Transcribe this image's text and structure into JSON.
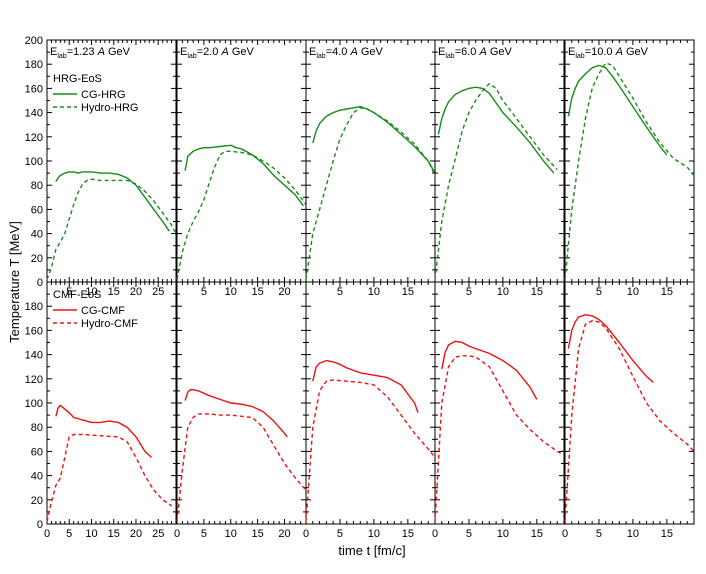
{
  "chart_data": {
    "type": "line",
    "title": "",
    "xlabel": "time t [fm/c]",
    "ylabel": "Temperature T [MeV]",
    "ylim": [
      0,
      200
    ],
    "yticks": [
      0,
      20,
      40,
      60,
      80,
      100,
      120,
      140,
      160,
      180
    ],
    "ytick_top": 200,
    "grid": false,
    "legend_position": "top-left",
    "colors": {
      "hrg": "#1a8a1a",
      "cmf": "#ee1111"
    },
    "rows": [
      {
        "label": "HRG-EoS",
        "legend": [
          "CG-HRG",
          "Hydro-HRG"
        ]
      },
      {
        "label": "CMF-EoS",
        "legend": [
          "CG-CMF",
          "Hydro-CMF"
        ]
      }
    ],
    "columns": [
      {
        "label_prefix": "E",
        "label_sub": "lab",
        "label_value": "=1.23 ",
        "label_italic": "A",
        "label_unit": " GeV",
        "xlim": [
          0,
          29
        ],
        "xticks": [
          5,
          10,
          15,
          20,
          25
        ],
        "xticks_bottom": [
          0,
          5,
          10,
          15,
          20,
          25
        ]
      },
      {
        "label_prefix": "E",
        "label_sub": "lab",
        "label_value": "=2.0 ",
        "label_italic": "A",
        "label_unit": " GeV",
        "xlim": [
          0,
          24
        ],
        "xticks": [
          5,
          10,
          15,
          20
        ],
        "xticks_bottom": [
          0,
          5,
          10,
          15,
          20
        ]
      },
      {
        "label_prefix": "E",
        "label_sub": "lab",
        "label_value": "=4.0 ",
        "label_italic": "A",
        "label_unit": " GeV",
        "xlim": [
          0,
          19
        ],
        "xticks": [
          5,
          10,
          15
        ],
        "xticks_bottom": [
          0,
          5,
          10,
          15
        ]
      },
      {
        "label_prefix": "E",
        "label_sub": "lab",
        "label_value": "=6.0 ",
        "label_italic": "A",
        "label_unit": " GeV",
        "xlim": [
          0,
          19
        ],
        "xticks": [
          5,
          10,
          15
        ],
        "xticks_bottom": [
          0,
          5,
          10,
          15
        ]
      },
      {
        "label_prefix": "E",
        "label_sub": "lab",
        "label_value": "=10.0 ",
        "label_italic": "A",
        "label_unit": " GeV",
        "xlim": [
          0,
          19
        ],
        "xticks": [
          5,
          10,
          15
        ],
        "xticks_bottom": [
          0,
          5,
          10,
          15
        ]
      }
    ],
    "series": [
      {
        "name": "CG-HRG",
        "row": 0,
        "col": 0,
        "style": "solid",
        "x": [
          2,
          2.5,
          3,
          4,
          5,
          6,
          7,
          8,
          10,
          12,
          14,
          16,
          18,
          20,
          22,
          24,
          26,
          27.5
        ],
        "y": [
          83,
          86,
          88,
          90,
          91,
          91,
          90,
          91,
          91,
          90,
          90,
          89,
          86,
          80,
          70,
          60,
          50,
          42
        ]
      },
      {
        "name": "Hydro-HRG",
        "row": 0,
        "col": 0,
        "style": "dashed",
        "x": [
          0,
          1,
          2,
          3,
          4,
          5,
          6,
          7,
          8,
          9,
          10,
          12,
          15,
          18,
          20,
          22,
          24,
          26,
          28,
          29
        ],
        "y": [
          2,
          12,
          27,
          33,
          40,
          52,
          64,
          74,
          81,
          84,
          85,
          84,
          84,
          84,
          81,
          75,
          67,
          57,
          47,
          40
        ]
      },
      {
        "name": "CG-HRG",
        "row": 0,
        "col": 1,
        "style": "solid",
        "x": [
          1.5,
          2,
          3,
          4,
          5,
          6,
          8,
          10,
          11,
          12,
          14,
          16,
          18,
          20,
          22,
          23.5
        ],
        "y": [
          92,
          104,
          108,
          110,
          111,
          111,
          112,
          113,
          111,
          110,
          105,
          98,
          88,
          80,
          72,
          63
        ]
      },
      {
        "name": "Hydro-HRG",
        "row": 0,
        "col": 1,
        "style": "dashed",
        "x": [
          0,
          1,
          2,
          3,
          4,
          5,
          6,
          7,
          8,
          9,
          10,
          12,
          14,
          16,
          18,
          20,
          22,
          24
        ],
        "y": [
          2,
          25,
          40,
          50,
          58,
          68,
          82,
          95,
          105,
          108,
          108,
          107,
          105,
          100,
          94,
          86,
          76,
          64
        ]
      },
      {
        "name": "CG-HRG",
        "row": 0,
        "col": 2,
        "style": "solid",
        "x": [
          1,
          1.5,
          2,
          3,
          4,
          5,
          6,
          7,
          8,
          9,
          10,
          12,
          14,
          16,
          18,
          19
        ],
        "y": [
          115,
          125,
          131,
          137,
          140,
          142,
          143,
          144,
          145,
          143,
          140,
          132,
          122,
          112,
          100,
          90
        ]
      },
      {
        "name": "Hydro-HRG",
        "row": 0,
        "col": 2,
        "style": "dashed",
        "x": [
          0,
          1,
          2,
          3,
          4,
          5,
          6,
          7,
          8,
          9,
          10,
          12,
          14,
          16,
          18,
          19
        ],
        "y": [
          2,
          40,
          60,
          80,
          100,
          118,
          130,
          140,
          144,
          143,
          140,
          133,
          124,
          114,
          100,
          88
        ]
      },
      {
        "name": "CG-HRG",
        "row": 0,
        "col": 3,
        "style": "solid",
        "x": [
          0.5,
          1,
          1.5,
          2,
          3,
          4,
          5,
          6,
          7,
          8,
          10,
          12,
          14,
          16,
          17.5
        ],
        "y": [
          122,
          135,
          143,
          149,
          155,
          158,
          160,
          161,
          160,
          156,
          140,
          128,
          115,
          100,
          90
        ]
      },
      {
        "name": "Hydro-HRG",
        "row": 0,
        "col": 3,
        "style": "dashed",
        "x": [
          0,
          1,
          2,
          3,
          4,
          5,
          6,
          7,
          8,
          9,
          10,
          12,
          14,
          16,
          18
        ],
        "y": [
          2,
          50,
          80,
          102,
          125,
          140,
          150,
          158,
          164,
          160,
          150,
          135,
          120,
          105,
          93
        ]
      },
      {
        "name": "CG-HRG",
        "row": 0,
        "col": 4,
        "style": "solid",
        "x": [
          0.5,
          1,
          1.5,
          2,
          3,
          4,
          5,
          6,
          7,
          8,
          10,
          12,
          14,
          15
        ],
        "y": [
          137,
          152,
          160,
          166,
          172,
          177,
          179,
          177,
          170,
          162,
          145,
          128,
          112,
          105
        ]
      },
      {
        "name": "Hydro-HRG",
        "row": 0,
        "col": 4,
        "style": "dashed",
        "x": [
          0,
          1,
          2,
          3,
          4,
          5,
          6,
          7,
          8,
          10,
          12,
          14,
          16,
          18,
          19
        ],
        "y": [
          2,
          60,
          100,
          135,
          160,
          172,
          181,
          179,
          170,
          152,
          132,
          115,
          102,
          95,
          88
        ]
      },
      {
        "name": "CG-CMF",
        "row": 1,
        "col": 0,
        "style": "solid",
        "x": [
          2,
          2.5,
          3,
          4,
          5,
          6,
          8,
          10,
          12,
          14,
          16,
          18,
          20,
          22,
          23.5
        ],
        "y": [
          89,
          96,
          98,
          95,
          92,
          88,
          86,
          84,
          84,
          85,
          84,
          80,
          72,
          60,
          55
        ]
      },
      {
        "name": "Hydro-CMF",
        "row": 1,
        "col": 0,
        "style": "dashed",
        "x": [
          0,
          1,
          2,
          3,
          4,
          5,
          6,
          8,
          12,
          16,
          18,
          20,
          22,
          24,
          26,
          28
        ],
        "y": [
          2,
          18,
          32,
          38,
          55,
          72,
          74,
          74,
          73,
          72,
          68,
          55,
          40,
          28,
          20,
          15
        ]
      },
      {
        "name": "CG-CMF",
        "row": 1,
        "col": 1,
        "style": "solid",
        "x": [
          1.5,
          2,
          2.5,
          3,
          4,
          5,
          6,
          8,
          10,
          12,
          14,
          16,
          18,
          20,
          20.5
        ],
        "y": [
          102,
          109,
          111,
          111,
          110,
          108,
          106,
          103,
          100,
          99,
          97,
          93,
          85,
          75,
          72
        ]
      },
      {
        "name": "Hydro-CMF",
        "row": 1,
        "col": 1,
        "style": "dashed",
        "x": [
          0,
          1,
          2,
          3,
          4,
          5,
          6,
          8,
          10,
          12,
          14,
          16,
          18,
          20,
          22,
          24
        ],
        "y": [
          2,
          45,
          80,
          88,
          91,
          91,
          91,
          90,
          90,
          89,
          88,
          80,
          65,
          50,
          38,
          28
        ]
      },
      {
        "name": "CG-CMF",
        "row": 1,
        "col": 2,
        "style": "solid",
        "x": [
          1,
          1.5,
          2,
          3,
          4,
          5,
          6,
          8,
          10,
          12,
          14,
          16,
          16.5
        ],
        "y": [
          118,
          130,
          133,
          135,
          134,
          132,
          129,
          125,
          123,
          121,
          115,
          100,
          92
        ]
      },
      {
        "name": "Hydro-CMF",
        "row": 1,
        "col": 2,
        "style": "dashed",
        "x": [
          0,
          1,
          2,
          3,
          4,
          6,
          8,
          10,
          12,
          14,
          16,
          18,
          19
        ],
        "y": [
          2,
          80,
          110,
          118,
          119,
          118,
          117,
          115,
          105,
          90,
          75,
          62,
          55
        ]
      },
      {
        "name": "CG-CMF",
        "row": 1,
        "col": 3,
        "style": "solid",
        "x": [
          1,
          1.5,
          2,
          3,
          4,
          5,
          6,
          8,
          10,
          12,
          14,
          15
        ],
        "y": [
          128,
          142,
          148,
          151,
          150,
          147,
          145,
          141,
          135,
          127,
          113,
          103
        ]
      },
      {
        "name": "Hydro-CMF",
        "row": 1,
        "col": 3,
        "style": "dashed",
        "x": [
          0,
          1,
          2,
          3,
          4,
          5,
          6,
          8,
          10,
          12,
          14,
          16,
          18,
          19
        ],
        "y": [
          2,
          100,
          130,
          138,
          139,
          139,
          138,
          130,
          110,
          90,
          78,
          68,
          60,
          57
        ]
      },
      {
        "name": "CG-CMF",
        "row": 1,
        "col": 4,
        "style": "solid",
        "x": [
          0.5,
          1,
          1.5,
          2,
          3,
          4,
          5,
          6,
          8,
          10,
          12,
          13
        ],
        "y": [
          145,
          160,
          167,
          171,
          173,
          172,
          169,
          164,
          150,
          135,
          122,
          117
        ]
      },
      {
        "name": "Hydro-CMF",
        "row": 1,
        "col": 4,
        "style": "dashed",
        "x": [
          0,
          1,
          2,
          3,
          4,
          5,
          6,
          8,
          10,
          12,
          14,
          16,
          18,
          19
        ],
        "y": [
          2,
          90,
          145,
          165,
          168,
          167,
          162,
          145,
          122,
          100,
          85,
          75,
          66,
          60
        ]
      }
    ]
  }
}
